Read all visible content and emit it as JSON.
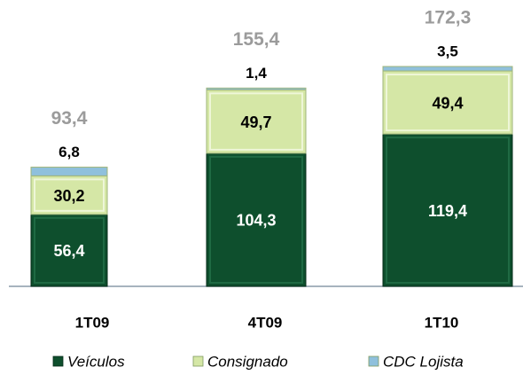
{
  "chart_data": {
    "type": "stacked_bar",
    "categories": [
      "1T09",
      "4T09",
      "1T10"
    ],
    "series": [
      {
        "name": "Veículos",
        "color": "#0e4f2d",
        "values": [
          56.4,
          104.3,
          119.4
        ],
        "value_labels": [
          "56,4",
          "104,3",
          "119,4"
        ]
      },
      {
        "name": "Consignado",
        "color": "#d5e7a6",
        "values": [
          30.2,
          49.7,
          49.4
        ],
        "value_labels": [
          "30,2",
          "49,7",
          "49,4"
        ]
      },
      {
        "name": "CDC Lojista",
        "color": "#8fc0dc",
        "values": [
          6.8,
          1.4,
          3.5
        ],
        "value_labels": [
          "6,8",
          "1,4",
          "3,5"
        ]
      }
    ],
    "totals": [
      93.4,
      155.4,
      172.3
    ],
    "total_labels": [
      "93,4",
      "155,4",
      "172,3"
    ],
    "legend": "bottom"
  }
}
